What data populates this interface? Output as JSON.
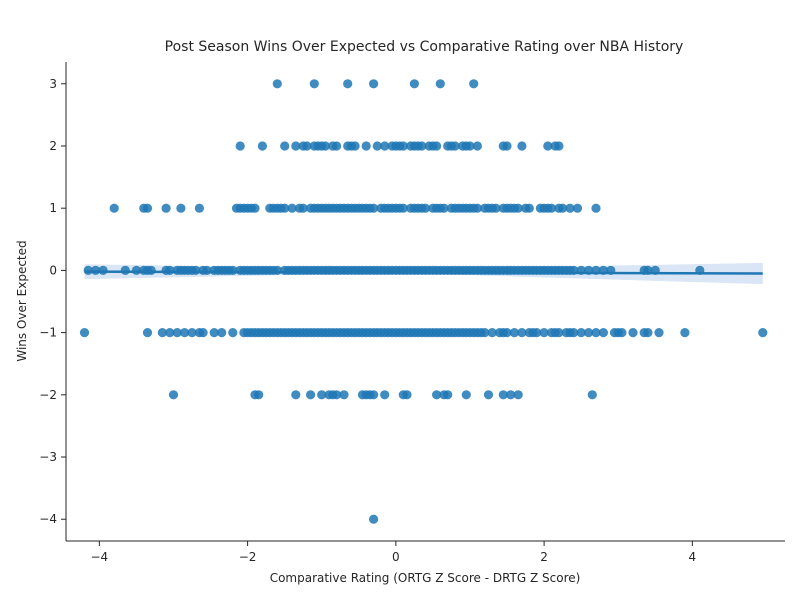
{
  "chart_data": {
    "type": "scatter",
    "title": "Post Season Wins Over Expected vs Comparative Rating over NBA History",
    "xlabel": "Comparative Rating (ORTG Z Score - DRTG Z Score)",
    "ylabel": "Wins Over Expected",
    "xlim": [
      -4.45,
      5.25
    ],
    "ylim": [
      -4.35,
      3.35
    ],
    "xticks": [
      -4,
      -2,
      0,
      2,
      4
    ],
    "yticks": [
      3,
      2,
      1,
      0,
      -1,
      -2,
      -3,
      -4
    ],
    "grid": false,
    "colors": {
      "points": "#1f77b4",
      "regression_line": "#1f77b4",
      "confidence_band": "#aec7e8"
    },
    "regression": {
      "x": [
        -4.2,
        4.95
      ],
      "y": [
        -0.02,
        -0.05
      ],
      "ci_upper_start": 0.1,
      "ci_lower_start": -0.14,
      "ci_upper_mid": 0.015,
      "ci_lower_mid": -0.04,
      "ci_upper_end": 0.12,
      "ci_lower_end": -0.22
    },
    "points": [
      {
        "y": 3,
        "x": [
          -1.6,
          -1.1,
          -0.65,
          -0.3,
          0.25,
          0.6,
          1.05
        ]
      },
      {
        "y": 2,
        "x": [
          -2.1,
          -1.8,
          -1.5,
          -1.35,
          -1.25,
          -1.2,
          -1.1,
          -1.05,
          -1.0,
          -0.95,
          -0.85,
          -0.8,
          -0.65,
          -0.6,
          -0.55,
          -0.4,
          -0.25,
          -0.15,
          -0.05,
          0.0,
          0.05,
          0.1,
          0.2,
          0.25,
          0.3,
          0.35,
          0.45,
          0.5,
          0.55,
          0.7,
          0.75,
          0.8,
          0.9,
          0.95,
          1.0,
          1.1,
          1.45,
          1.5,
          1.7,
          2.05,
          2.15,
          2.2
        ]
      },
      {
        "y": 1,
        "x": [
          -3.8,
          -3.4,
          -3.35,
          -3.1,
          -2.9,
          -2.65,
          -2.15,
          -2.1,
          -2.05,
          -2.0,
          -1.95,
          -1.9,
          -1.7,
          -1.65,
          -1.6,
          -1.55,
          -1.5,
          -1.4,
          -1.3,
          -1.25,
          -1.15,
          -1.1,
          -1.05,
          -1.0,
          -0.95,
          -0.9,
          -0.85,
          -0.8,
          -0.75,
          -0.7,
          -0.65,
          -0.6,
          -0.55,
          -0.5,
          -0.45,
          -0.4,
          -0.35,
          -0.3,
          -0.2,
          -0.15,
          -0.1,
          -0.05,
          0.0,
          0.05,
          0.1,
          0.2,
          0.25,
          0.3,
          0.35,
          0.4,
          0.5,
          0.55,
          0.6,
          0.65,
          0.75,
          0.8,
          0.85,
          0.9,
          0.95,
          1.0,
          1.05,
          1.1,
          1.2,
          1.25,
          1.3,
          1.35,
          1.45,
          1.5,
          1.55,
          1.6,
          1.65,
          1.75,
          1.8,
          1.95,
          2.0,
          2.05,
          2.1,
          2.2,
          2.25,
          2.35,
          2.45,
          2.7
        ]
      },
      {
        "y": 0,
        "x": [
          -4.15,
          -4.05,
          -3.95,
          -3.65,
          -3.5,
          -3.4,
          -3.35,
          -3.3,
          -3.1,
          -3.05,
          -2.95,
          -2.9,
          -2.85,
          -2.8,
          -2.75,
          -2.7,
          -2.6,
          -2.55,
          -2.45,
          -2.4,
          -2.35,
          -2.3,
          -2.25,
          -2.2,
          -2.1,
          -2.05,
          -2.0,
          -1.95,
          -1.9,
          -1.85,
          -1.8,
          -1.75,
          -1.7,
          -1.65,
          -1.6,
          -1.5,
          -1.45,
          -1.4,
          -1.35,
          -1.3,
          -1.25,
          -1.2,
          -1.15,
          -1.1,
          -1.05,
          -1.0,
          -0.95,
          -0.9,
          -0.85,
          -0.8,
          -0.75,
          -0.7,
          -0.65,
          -0.6,
          -0.55,
          -0.5,
          -0.45,
          -0.4,
          -0.35,
          -0.3,
          -0.25,
          -0.2,
          -0.15,
          -0.1,
          -0.05,
          0.0,
          0.05,
          0.1,
          0.15,
          0.2,
          0.25,
          0.3,
          0.35,
          0.4,
          0.45,
          0.5,
          0.55,
          0.6,
          0.65,
          0.7,
          0.75,
          0.8,
          0.85,
          0.9,
          0.95,
          1.0,
          1.05,
          1.1,
          1.15,
          1.2,
          1.25,
          1.3,
          1.35,
          1.4,
          1.45,
          1.5,
          1.55,
          1.6,
          1.65,
          1.7,
          1.75,
          1.8,
          1.85,
          1.9,
          1.95,
          2.0,
          2.05,
          2.1,
          2.15,
          2.2,
          2.25,
          2.3,
          2.35,
          2.4,
          2.5,
          2.6,
          2.7,
          2.8,
          2.9,
          3.35,
          3.4,
          3.5,
          4.1
        ]
      },
      {
        "y": -1,
        "x": [
          -4.2,
          -3.35,
          -3.15,
          -3.05,
          -2.95,
          -2.85,
          -2.75,
          -2.65,
          -2.6,
          -2.45,
          -2.35,
          -2.2,
          -2.05,
          -2.0,
          -1.95,
          -1.9,
          -1.85,
          -1.8,
          -1.75,
          -1.7,
          -1.65,
          -1.6,
          -1.55,
          -1.5,
          -1.45,
          -1.4,
          -1.35,
          -1.3,
          -1.25,
          -1.2,
          -1.15,
          -1.1,
          -1.05,
          -1.0,
          -0.95,
          -0.9,
          -0.85,
          -0.8,
          -0.75,
          -0.7,
          -0.65,
          -0.6,
          -0.55,
          -0.5,
          -0.45,
          -0.4,
          -0.35,
          -0.3,
          -0.25,
          -0.2,
          -0.15,
          -0.1,
          -0.05,
          0.0,
          0.05,
          0.1,
          0.15,
          0.2,
          0.25,
          0.3,
          0.35,
          0.4,
          0.45,
          0.5,
          0.55,
          0.6,
          0.65,
          0.7,
          0.75,
          0.8,
          0.85,
          0.9,
          0.95,
          1.0,
          1.05,
          1.1,
          1.15,
          1.2,
          1.3,
          1.4,
          1.45,
          1.5,
          1.6,
          1.7,
          1.8,
          1.85,
          1.9,
          2.0,
          2.1,
          2.15,
          2.2,
          2.3,
          2.35,
          2.4,
          2.5,
          2.6,
          2.7,
          2.8,
          2.95,
          3.0,
          3.05,
          3.2,
          3.35,
          3.4,
          3.55,
          3.9,
          4.95
        ]
      },
      {
        "y": -2,
        "x": [
          -3.0,
          -1.9,
          -1.85,
          -1.35,
          -1.15,
          -1.0,
          -0.9,
          -0.85,
          -0.8,
          -0.7,
          -0.45,
          -0.4,
          -0.35,
          -0.3,
          -0.15,
          0.1,
          0.15,
          0.55,
          0.65,
          0.7,
          0.95,
          1.25,
          1.45,
          1.55,
          1.65,
          2.65
        ]
      },
      {
        "y": -4,
        "x": [
          -0.3
        ]
      }
    ]
  }
}
